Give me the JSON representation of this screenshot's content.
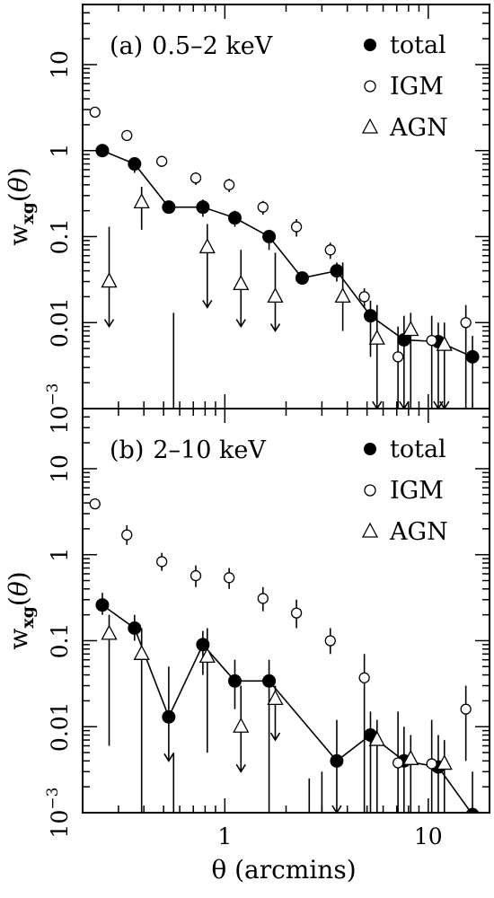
{
  "chart_data": [
    {
      "type": "scatter",
      "panel_label": "(a)",
      "title": "0.5–2 keV",
      "ylabel": "w_xg(θ)",
      "xlabel": "",
      "x_scale": "log",
      "y_scale": "log",
      "xlim": [
        0.2,
        20
      ],
      "ylim": [
        0.001,
        50
      ],
      "x_ticks": [
        1,
        10
      ],
      "x_tick_labels": [
        "1",
        "10"
      ],
      "y_ticks": [
        0.001,
        0.01,
        0.1,
        1,
        10
      ],
      "y_tick_labels": [
        "10^-3",
        "0.01",
        "0.1",
        "1",
        "10"
      ],
      "legend_position": "top-right",
      "legend_order": [
        "total",
        "IGM",
        "AGN"
      ],
      "series": [
        {
          "name": "total",
          "marker": "filled-circle",
          "connected": true,
          "points": [
            {
              "x": 0.25,
              "y": 1.0,
              "lo": 1.0,
              "hi": 1.0
            },
            {
              "x": 0.36,
              "y": 0.7,
              "lo": 0.55,
              "hi": 0.8
            },
            {
              "x": 0.53,
              "y": 0.22,
              "lo": 0.2,
              "hi": 0.25
            },
            {
              "x": 0.78,
              "y": 0.22,
              "lo": 0.17,
              "hi": 0.27
            },
            {
              "x": 1.12,
              "y": 0.165,
              "lo": 0.13,
              "hi": 0.2
            },
            {
              "x": 1.65,
              "y": 0.1,
              "lo": 0.07,
              "hi": 0.12
            },
            {
              "x": 2.4,
              "y": 0.033,
              "lo": 0.033,
              "hi": 0.033
            },
            {
              "x": 3.55,
              "y": 0.04,
              "lo": 0.03,
              "hi": 0.05
            },
            {
              "x": 5.2,
              "y": 0.012,
              "lo": 0.004,
              "hi": 0.018
            },
            {
              "x": 7.6,
              "y": 0.0063,
              "lo": 0.001,
              "hi": 0.012,
              "limit": true
            },
            {
              "x": 11.2,
              "y": 0.006,
              "lo": 0.001,
              "hi": 0.01,
              "limit": true
            },
            {
              "x": 16.5,
              "y": 0.004,
              "lo": 0.001,
              "hi": 0.007
            }
          ]
        },
        {
          "name": "IGM",
          "marker": "open-circle",
          "connected": false,
          "points": [
            {
              "x": 0.23,
              "y": 2.8,
              "lo": 2.6,
              "hi": 3.0
            },
            {
              "x": 0.33,
              "y": 1.5,
              "lo": 1.3,
              "hi": 1.7
            },
            {
              "x": 0.49,
              "y": 0.75,
              "lo": 0.65,
              "hi": 0.85
            },
            {
              "x": 0.72,
              "y": 0.48,
              "lo": 0.4,
              "hi": 0.56
            },
            {
              "x": 1.05,
              "y": 0.4,
              "lo": 0.33,
              "hi": 0.47
            },
            {
              "x": 1.54,
              "y": 0.22,
              "lo": 0.18,
              "hi": 0.26
            },
            {
              "x": 2.25,
              "y": 0.13,
              "lo": 0.1,
              "hi": 0.16
            },
            {
              "x": 3.3,
              "y": 0.07,
              "lo": 0.055,
              "hi": 0.085
            },
            {
              "x": 4.85,
              "y": 0.02,
              "lo": 0.015,
              "hi": 0.025
            },
            {
              "x": 7.1,
              "y": 0.004,
              "lo": 0.001,
              "hi": 0.009
            },
            {
              "x": 10.4,
              "y": 0.0062,
              "lo": 0.001,
              "hi": 0.012
            },
            {
              "x": 15.3,
              "y": 0.01,
              "lo": 0.001,
              "hi": 0.016
            }
          ]
        },
        {
          "name": "AGN",
          "marker": "open-triangle",
          "connected": false,
          "points": [
            {
              "x": 0.27,
              "y": 0.03,
              "lo": 0.009,
              "hi": 0.13,
              "limit": true
            },
            {
              "x": 0.39,
              "y": 0.25,
              "lo": 0.12,
              "hi": 0.38
            },
            {
              "x": 0.82,
              "y": 0.075,
              "lo": 0.015,
              "hi": 0.14,
              "limit": true
            },
            {
              "x": 1.2,
              "y": 0.028,
              "lo": 0.009,
              "hi": 0.07,
              "limit": true
            },
            {
              "x": 1.77,
              "y": 0.02,
              "lo": 0.008,
              "hi": 0.065,
              "limit": true
            },
            {
              "x": 3.8,
              "y": 0.02,
              "lo": 0.008,
              "hi": 0.05
            },
            {
              "x": 5.6,
              "y": 0.0065,
              "lo": 0.001,
              "hi": 0.016,
              "limit": true
            },
            {
              "x": 8.2,
              "y": 0.0082,
              "lo": 0.001,
              "hi": 0.013
            },
            {
              "x": 12.0,
              "y": 0.0055,
              "lo": 0.001,
              "hi": 0.01,
              "limit": true
            }
          ]
        }
      ],
      "extra_error_bars": [
        {
          "x": 0.56,
          "lo": 0.001,
          "hi": 0.013
        }
      ]
    },
    {
      "type": "scatter",
      "panel_label": "(b)",
      "title": "2–10 keV",
      "ylabel": "w_xg(θ)",
      "xlabel": "θ (arcmins)",
      "x_scale": "log",
      "y_scale": "log",
      "xlim": [
        0.2,
        20
      ],
      "ylim": [
        0.001,
        50
      ],
      "x_ticks": [
        1,
        10
      ],
      "x_tick_labels": [
        "1",
        "10"
      ],
      "y_ticks": [
        0.001,
        0.01,
        0.1,
        1,
        10
      ],
      "y_tick_labels": [
        "10^-3",
        "0.01",
        "0.1",
        "1",
        "10"
      ],
      "legend_position": "top-right",
      "legend_order": [
        "total",
        "IGM",
        "AGN"
      ],
      "series": [
        {
          "name": "total",
          "marker": "filled-circle",
          "connected": true,
          "points": [
            {
              "x": 0.25,
              "y": 0.26,
              "lo": 0.2,
              "hi": 0.36
            },
            {
              "x": 0.36,
              "y": 0.14,
              "lo": 0.1,
              "hi": 0.2
            },
            {
              "x": 0.53,
              "y": 0.013,
              "lo": 0.004,
              "hi": 0.05,
              "limit": true
            },
            {
              "x": 0.78,
              "y": 0.09,
              "lo": 0.04,
              "hi": 0.13
            },
            {
              "x": 1.12,
              "y": 0.034,
              "lo": 0.016,
              "hi": 0.06
            },
            {
              "x": 1.65,
              "y": 0.034,
              "lo": 0.001,
              "hi": 0.06
            },
            {
              "x": 3.55,
              "y": 0.004,
              "lo": 0.001,
              "hi": 0.012,
              "limit": true
            },
            {
              "x": 5.2,
              "y": 0.008,
              "lo": 0.001,
              "hi": 0.015
            },
            {
              "x": 7.6,
              "y": 0.004,
              "lo": 0.001,
              "hi": 0.01
            },
            {
              "x": 11.2,
              "y": 0.0034,
              "lo": 0.001,
              "hi": 0.008
            },
            {
              "x": 16.5,
              "y": 0.00095,
              "lo": 0.001,
              "hi": 0.003
            }
          ]
        },
        {
          "name": "IGM",
          "marker": "open-circle",
          "connected": false,
          "points": [
            {
              "x": 0.23,
              "y": 3.9,
              "lo": 3.6,
              "hi": 4.2
            },
            {
              "x": 0.33,
              "y": 1.7,
              "lo": 1.3,
              "hi": 2.2
            },
            {
              "x": 0.49,
              "y": 0.83,
              "lo": 0.65,
              "hi": 1.05
            },
            {
              "x": 0.72,
              "y": 0.57,
              "lo": 0.42,
              "hi": 0.75
            },
            {
              "x": 1.05,
              "y": 0.54,
              "lo": 0.4,
              "hi": 0.7
            },
            {
              "x": 1.54,
              "y": 0.31,
              "lo": 0.22,
              "hi": 0.42
            },
            {
              "x": 2.25,
              "y": 0.21,
              "lo": 0.14,
              "hi": 0.3
            },
            {
              "x": 3.3,
              "y": 0.1,
              "lo": 0.07,
              "hi": 0.14
            },
            {
              "x": 4.85,
              "y": 0.037,
              "lo": 0.001,
              "hi": 0.07
            },
            {
              "x": 7.1,
              "y": 0.0038,
              "lo": 0.001,
              "hi": 0.015
            },
            {
              "x": 10.4,
              "y": 0.0037,
              "lo": 0.001,
              "hi": 0.012
            },
            {
              "x": 15.3,
              "y": 0.016,
              "lo": 0.004,
              "hi": 0.03
            }
          ]
        },
        {
          "name": "AGN",
          "marker": "open-triangle",
          "connected": false,
          "points": [
            {
              "x": 0.27,
              "y": 0.12,
              "lo": 0.006,
              "hi": 0.2
            },
            {
              "x": 0.39,
              "y": 0.07,
              "lo": 0.001,
              "hi": 0.14
            },
            {
              "x": 0.82,
              "y": 0.065,
              "lo": 0.005,
              "hi": 0.14
            },
            {
              "x": 1.2,
              "y": 0.01,
              "lo": 0.003,
              "hi": 0.03,
              "limit": true
            },
            {
              "x": 1.77,
              "y": 0.021,
              "lo": 0.007,
              "hi": 0.03,
              "limit": true
            },
            {
              "x": 5.6,
              "y": 0.007,
              "lo": 0.001,
              "hi": 0.012
            },
            {
              "x": 8.2,
              "y": 0.0042,
              "lo": 0.001,
              "hi": 0.008
            },
            {
              "x": 12.0,
              "y": 0.0037,
              "lo": 0.001,
              "hi": 0.007
            }
          ]
        }
      ],
      "extra_error_bars": [
        {
          "x": 0.56,
          "lo": 0.001,
          "hi": 0.005
        },
        {
          "x": 2.6,
          "lo": 0.001,
          "hi": 0.0025
        },
        {
          "x": 3.0,
          "lo": 0.001,
          "hi": 0.003
        }
      ]
    }
  ]
}
